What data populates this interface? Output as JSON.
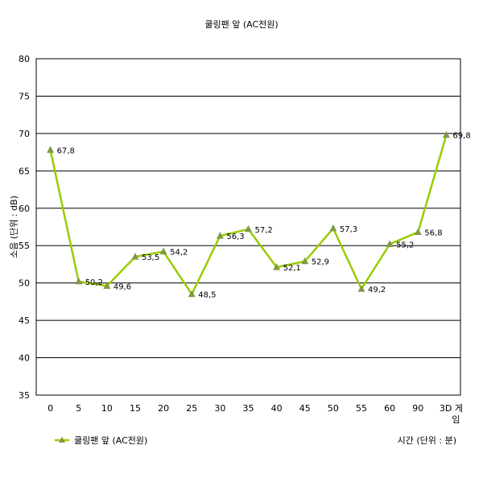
{
  "chart_data": {
    "type": "line",
    "title": "쿨링팬 앞 (AC전원)",
    "ylabel": "소음 (단위 : dB)",
    "xlabel": "시간 (단위 : 분)",
    "categories": [
      "0",
      "5",
      "10",
      "15",
      "20",
      "25",
      "30",
      "35",
      "40",
      "45",
      "50",
      "55",
      "60",
      "90",
      "3D 게임"
    ],
    "series": [
      {
        "name": "쿨링팬 앞 (AC전원)",
        "values": [
          67.8,
          50.2,
          49.6,
          53.5,
          54.2,
          48.5,
          56.3,
          57.2,
          52.1,
          52.9,
          57.3,
          49.2,
          55.2,
          56.8,
          69.8
        ],
        "data_labels": [
          "67,8",
          "50,2",
          "49,6",
          "53,5",
          "54,2",
          "48,5",
          "56,3",
          "57,2",
          "52,1",
          "52,9",
          "57,3",
          "49,2",
          "55,2",
          "56,8",
          "69,8"
        ]
      }
    ],
    "ylim": [
      35,
      80
    ],
    "yticks": [
      35,
      40,
      45,
      50,
      55,
      60,
      65,
      70,
      75,
      80
    ],
    "grid": true,
    "legend": "bottom-left",
    "colors": {
      "line": "#99CC00",
      "marker": "#7F9A48"
    }
  }
}
